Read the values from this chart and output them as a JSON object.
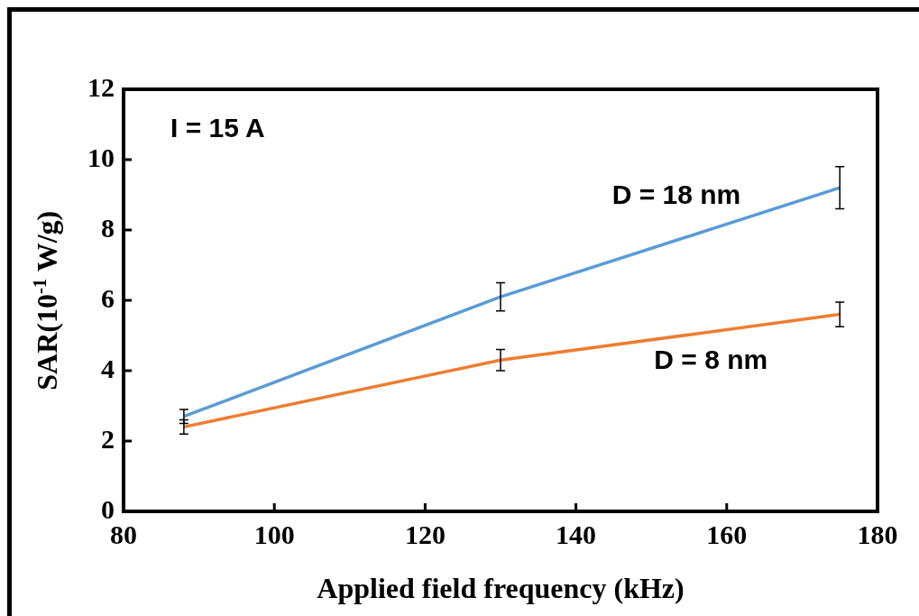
{
  "chart_data": {
    "type": "line",
    "xlabel": "Applied field frequency (kHz)",
    "ylabel": "SAR(10$^{-1}$ W/g)",
    "x": [
      88,
      130,
      175
    ],
    "series": [
      {
        "name": "D = 18 nm",
        "color": "#5b9bd5",
        "values": [
          2.7,
          6.1,
          9.2
        ],
        "errors": [
          0.2,
          0.4,
          0.6
        ]
      },
      {
        "name": "D = 8 nm",
        "color": "#ed7d31",
        "values": [
          2.4,
          4.3,
          5.6
        ],
        "errors": [
          0.2,
          0.3,
          0.35
        ]
      }
    ],
    "xlim": [
      80,
      180
    ],
    "xticks": [
      80,
      100,
      120,
      140,
      160,
      180
    ],
    "ylim": [
      0,
      12
    ],
    "yticks": [
      0,
      2,
      4,
      6,
      8,
      10,
      12
    ],
    "annotations": [
      "I = 15 A"
    ],
    "grid": false,
    "legend": false,
    "marker": "none",
    "line_style": "solid"
  }
}
